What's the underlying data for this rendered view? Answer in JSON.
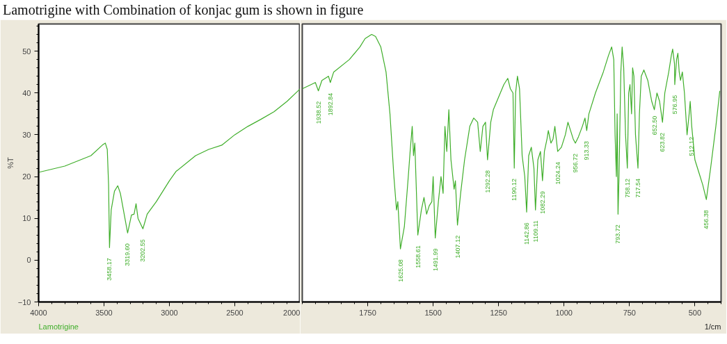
{
  "chart_data": [
    {
      "type": "line",
      "title": "Lamotrigine with Combination of konjac gum is shown in figure",
      "ylabel": "%T",
      "xlim": [
        4000,
        2000
      ],
      "xticks": [
        4000,
        3500,
        3000,
        2500,
        2000
      ],
      "ylim": [
        -10,
        56.5
      ],
      "yticks": [
        -10,
        0,
        10,
        20,
        30,
        40,
        50
      ],
      "grid": false,
      "marker": "none",
      "line_style": "solid",
      "series": [
        {
          "color": "#3fae2a",
          "x": [
            4000,
            3800,
            3600,
            3510,
            3490,
            3475,
            3465,
            3458,
            3445,
            3420,
            3395,
            3375,
            3340,
            3319.6,
            3290,
            3270,
            3255,
            3240,
            3202.55,
            3170,
            3100,
            3000,
            2950,
            2800,
            2700,
            2600,
            2500,
            2400,
            2300,
            2200,
            2100,
            2000
          ],
          "values": [
            21,
            22.5,
            25,
            27.6,
            28,
            26.5,
            18,
            3,
            12,
            16.5,
            17.8,
            16,
            10,
            6.5,
            10.8,
            11,
            13.5,
            10,
            7.5,
            11,
            14,
            19,
            21.2,
            25,
            26.5,
            27.5,
            30,
            32,
            33.7,
            35.5,
            38,
            41
          ]
        }
      ],
      "annotations": [
        {
          "text": "3458.17",
          "x": 3458,
          "y": 3
        },
        {
          "text": "3319.60",
          "x": 3319.6,
          "y": 6.5
        },
        {
          "text": "3202.55",
          "x": 3202.55,
          "y": 7.5
        },
        "Lamotrigine"
      ]
    },
    {
      "type": "line",
      "xlabel": "1/cm",
      "tick_labels": "x",
      "xlim": [
        2000,
        400
      ],
      "xticks": [
        1750,
        1500,
        1250,
        1000,
        750,
        500
      ],
      "ylim": [
        -10,
        56.5
      ],
      "grid": false,
      "marker": "none",
      "line_style": "solid",
      "series": [
        {
          "color": "#3fae2a",
          "x": [
            2000,
            1950,
            1938.52,
            1925,
            1900,
            1892.84,
            1880,
            1820,
            1780,
            1760,
            1735,
            1720,
            1700,
            1680,
            1665,
            1650,
            1640,
            1635,
            1625.08,
            1610,
            1595,
            1588,
            1580,
            1575,
            1570,
            1558.61,
            1545,
            1535,
            1525,
            1515,
            1505,
            1500,
            1491.99,
            1480,
            1470,
            1462,
            1455,
            1448,
            1440,
            1432,
            1420,
            1415,
            1407.12,
            1395,
            1380,
            1360,
            1345,
            1330,
            1320,
            1310,
            1300,
            1292.28,
            1280,
            1270,
            1250,
            1230,
            1215,
            1205,
            1195,
            1190.12,
            1185,
            1178,
            1170,
            1160,
            1150,
            1142.86,
            1135,
            1125,
            1115,
            1109.11,
            1100,
            1090,
            1082.29,
            1075,
            1065,
            1060,
            1050,
            1042,
            1035,
            1024.24,
            1010,
            995,
            985,
            975,
            965,
            956.72,
            945,
            930,
            920,
            913.33,
            905,
            880,
            850,
            830,
            818,
            810,
            805,
            800,
            797,
            793.72,
            790,
            783,
            778,
            772,
            765,
            758.12,
            753,
            748,
            742,
            738,
            733,
            727,
            717.54,
            712,
            705,
            695,
            680,
            665,
            655,
            652.5,
            645,
            635,
            623.82,
            615,
            600,
            590,
            585,
            578,
            576.95,
            570,
            565,
            560,
            555,
            548,
            540,
            530,
            522,
            518,
            512.12,
            500,
            480,
            470,
            456.38,
            440,
            420,
            405
          ],
          "values": [
            41,
            42.5,
            40.5,
            43,
            44,
            42.5,
            45,
            48,
            51,
            53,
            54,
            53.5,
            51,
            45,
            35,
            20,
            12,
            14,
            2.7,
            8,
            20,
            26,
            32,
            25,
            28,
            6,
            12,
            15,
            11,
            13,
            14,
            20,
            5.3,
            14,
            20,
            16,
            32,
            26,
            36,
            24,
            17,
            19,
            8.4,
            16,
            24,
            32,
            34,
            33,
            26,
            32,
            33,
            24,
            33,
            36,
            39,
            42,
            43.5,
            41,
            40,
            22,
            40,
            44,
            41,
            25,
            20,
            11.5,
            25,
            27,
            22,
            12,
            24,
            26,
            19,
            26,
            29,
            31,
            28,
            29,
            32,
            26,
            27,
            30,
            33,
            31,
            29,
            28,
            29.5,
            32,
            34,
            31,
            35,
            40,
            45,
            49,
            51,
            48,
            30,
            20,
            35,
            11,
            20,
            45,
            51,
            46,
            30,
            22,
            40,
            42,
            35,
            46,
            44,
            30,
            22,
            35,
            44,
            45.5,
            43,
            38,
            36,
            37,
            40,
            38,
            33,
            40,
            45,
            49,
            50.5,
            47,
            42,
            48,
            49.5,
            45,
            43,
            45,
            40,
            30,
            35,
            38,
            32,
            24,
            20,
            18,
            14.5,
            22,
            32,
            40.5
          ]
        }
      ],
      "annotations": [
        {
          "text": "1938.52",
          "x": 1938.52,
          "y": 40.5
        },
        {
          "text": "1892.84",
          "x": 1892.84,
          "y": 42.5
        },
        {
          "text": "1625.08",
          "x": 1625.08,
          "y": 2.7
        },
        {
          "text": "1558.61",
          "x": 1558.61,
          "y": 6
        },
        {
          "text": "1491.99",
          "x": 1491.99,
          "y": 5.3
        },
        {
          "text": "1407.12",
          "x": 1407.12,
          "y": 8.4
        },
        {
          "text": "1292.28",
          "x": 1292.28,
          "y": 24
        },
        {
          "text": "1190.12",
          "x": 1190.12,
          "y": 22
        },
        {
          "text": "1142.86",
          "x": 1142.86,
          "y": 11.5
        },
        {
          "text": "1109.11",
          "x": 1109.11,
          "y": 12
        },
        {
          "text": "1082.29",
          "x": 1082.29,
          "y": 19
        },
        {
          "text": "1024.24",
          "x": 1024.24,
          "y": 26
        },
        {
          "text": "956.72",
          "x": 956.72,
          "y": 28
        },
        {
          "text": "913.33",
          "x": 913.33,
          "y": 31
        },
        {
          "text": "793.72",
          "x": 793.72,
          "y": 11
        },
        {
          "text": "758.12",
          "x": 758.12,
          "y": 22
        },
        {
          "text": "717.54",
          "x": 717.54,
          "y": 22
        },
        {
          "text": "652.50",
          "x": 652.5,
          "y": 37
        },
        {
          "text": "623.82",
          "x": 623.82,
          "y": 33
        },
        {
          "text": "576.95",
          "x": 576.95,
          "y": 42
        },
        {
          "text": "512.12",
          "x": 512.12,
          "y": 32
        },
        {
          "text": "456.38",
          "x": 456.38,
          "y": 14.5
        }
      ]
    }
  ]
}
